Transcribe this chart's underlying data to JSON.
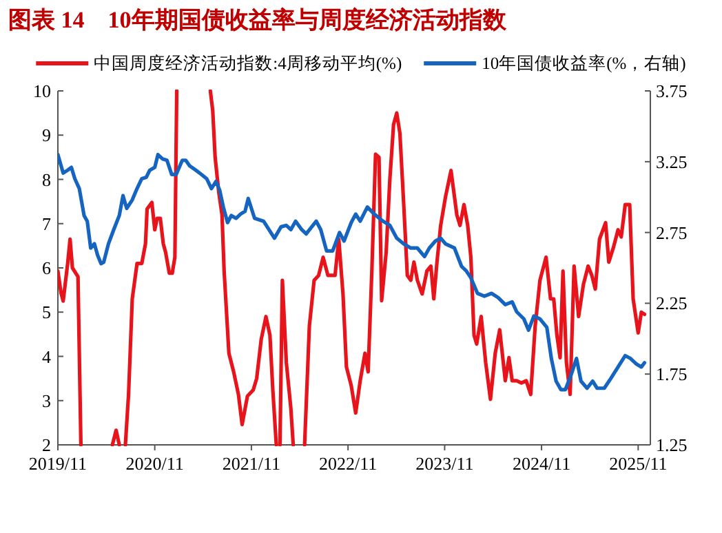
{
  "chart_data": {
    "type": "line",
    "title": "图表 14　10年期国债收益率与周度经济活动指数",
    "legend": "top",
    "marker": "none",
    "line_style": "solid",
    "grid": false,
    "xlim": [
      "2019-11-01",
      "2025-12-17"
    ],
    "xticks": [
      {
        "value": "2019-11-01",
        "label": "2019/11"
      },
      {
        "value": "2020-11-01",
        "label": "2020/11"
      },
      {
        "value": "2021-11-01",
        "label": "2021/11"
      },
      {
        "value": "2022-11-01",
        "label": "2022/11"
      },
      {
        "value": "2023-11-01",
        "label": "2023/11"
      },
      {
        "value": "2024-11-01",
        "label": "2024/11"
      },
      {
        "value": "2025-11-01",
        "label": "2025/11"
      }
    ],
    "ylim": [
      2,
      10
    ],
    "yticks": [
      2,
      3,
      4,
      5,
      6,
      7,
      8,
      9,
      10
    ],
    "y2lim": [
      1.25,
      3.75
    ],
    "y2ticks": [
      1.25,
      1.75,
      2.25,
      2.75,
      3.25,
      3.75
    ],
    "series": [
      {
        "name": "中国周度经济活动指数:4周移动平均(%)",
        "color": "#e8141c",
        "x": [
          "2019-11-01",
          "2019-11-13",
          "2019-11-21",
          "2019-12-08",
          "2019-12-17",
          "2019-12-26",
          "2020-01-16",
          "2020-01-27",
          "2020-04-01",
          "2020-05-25",
          "2020-06-08",
          "2020-06-20",
          "2020-07-01",
          "2020-07-13",
          "2020-07-25",
          "2020-08-08",
          "2020-08-26",
          "2020-09-13",
          "2020-09-27",
          "2020-10-03",
          "2020-10-21",
          "2020-11-01",
          "2020-11-10",
          "2020-11-22",
          "2020-12-03",
          "2020-12-12",
          "2020-12-26",
          "2021-01-06",
          "2021-01-16",
          "2021-01-23",
          "2021-03-15",
          "2021-05-30",
          "2021-06-08",
          "2021-06-17",
          "2021-07-01",
          "2021-07-13",
          "2021-07-21",
          "2021-08-08",
          "2021-08-26",
          "2021-09-13",
          "2021-09-27",
          "2021-10-17",
          "2021-11-08",
          "2021-11-21",
          "2021-12-08",
          "2021-12-26",
          "2022-01-10",
          "2022-01-21",
          "2022-02-03",
          "2022-02-10",
          "2022-02-17",
          "2022-02-26",
          "2022-03-13",
          "2022-03-30",
          "2022-04-08",
          "2022-05-01",
          "2022-05-21",
          "2022-06-08",
          "2022-06-26",
          "2022-07-13",
          "2022-07-30",
          "2022-08-17",
          "2022-09-13",
          "2022-09-27",
          "2022-10-13",
          "2022-10-26",
          "2022-11-13",
          "2022-11-30",
          "2022-12-17",
          "2023-01-04",
          "2023-01-16",
          "2023-01-30",
          "2023-02-13",
          "2023-02-26",
          "2023-03-08",
          "2023-03-25",
          "2023-04-08",
          "2023-04-22",
          "2023-05-04",
          "2023-05-16",
          "2023-05-30",
          "2023-06-13",
          "2023-06-26",
          "2023-07-08",
          "2023-07-21",
          "2023-08-08",
          "2023-08-26",
          "2023-09-10",
          "2023-09-21",
          "2023-10-03",
          "2023-10-17",
          "2023-11-04",
          "2023-11-25",
          "2023-12-17",
          "2023-12-29",
          "2024-01-13",
          "2024-01-27",
          "2024-02-08",
          "2024-02-20",
          "2024-03-01",
          "2024-03-18",
          "2024-04-04",
          "2024-04-22",
          "2024-05-10",
          "2024-05-27",
          "2024-06-17",
          "2024-07-01",
          "2024-07-13",
          "2024-07-30",
          "2024-08-17",
          "2024-09-04",
          "2024-09-21",
          "2024-10-08",
          "2024-10-26",
          "2024-11-18",
          "2024-12-05",
          "2024-12-17",
          "2024-12-29",
          "2025-01-10",
          "2025-01-21",
          "2025-02-03",
          "2025-02-17",
          "2025-03-04",
          "2025-03-21",
          "2025-04-08",
          "2025-04-26",
          "2025-05-10",
          "2025-05-23",
          "2025-06-08",
          "2025-07-01",
          "2025-07-13",
          "2025-07-30",
          "2025-08-17",
          "2025-08-29",
          "2025-09-13",
          "2025-09-30",
          "2025-10-13",
          "2025-11-01",
          "2025-11-13",
          "2025-11-25"
        ],
        "values": [
          5.93,
          5.43,
          5.25,
          6.1,
          6.65,
          6.0,
          5.8,
          2.0,
          null,
          2.0,
          2.33,
          2.0,
          null,
          2.0,
          3.14,
          5.3,
          6.1,
          6.1,
          6.55,
          7.33,
          7.48,
          6.86,
          7.12,
          7.12,
          6.55,
          6.35,
          5.88,
          5.88,
          6.24,
          10,
          null,
          10,
          9.55,
          8.5,
          7.7,
          7.2,
          5.93,
          4.07,
          3.65,
          3.14,
          2.46,
          3.1,
          3.24,
          3.5,
          4.38,
          4.9,
          4.48,
          3.24,
          2.0,
          null,
          2.0,
          5.72,
          3.86,
          2.83,
          2.0,
          null,
          2.0,
          4.69,
          5.72,
          5.83,
          6.24,
          5.83,
          5.83,
          6.65,
          5.41,
          3.76,
          3.34,
          2.72,
          3.45,
          4.07,
          3.65,
          5.93,
          8.57,
          8.5,
          5.26,
          6.35,
          8.0,
          9.24,
          9.5,
          9.04,
          7.48,
          5.83,
          5.72,
          6.13,
          5.72,
          5.41,
          5.93,
          6.04,
          5.3,
          6.13,
          6.96,
          7.6,
          8.2,
          7.2,
          6.96,
          7.43,
          6.96,
          6.24,
          4.48,
          4.28,
          4.9,
          3.86,
          3.03,
          4.07,
          4.6,
          3.45,
          3.97,
          3.45,
          3.45,
          3.4,
          3.45,
          3.14,
          4.69,
          5.72,
          6.24,
          5.3,
          5.3,
          4.48,
          3.97,
          5.93,
          3.86,
          3.14,
          6.04,
          4.9,
          5.62,
          6.04,
          5.83,
          5.52,
          6.65,
          7.02,
          6.13,
          6.45,
          6.86,
          6.7,
          7.43,
          7.43,
          5.3,
          4.53,
          5.0,
          4.95
        ]
      },
      {
        "name": "10年国债收益率(%，右轴)",
        "color": "#1565c0",
        "axis": "y2",
        "x": [
          "2019-11-01",
          "2019-11-21",
          "2019-12-08",
          "2019-12-22",
          "2020-01-04",
          "2020-01-21",
          "2020-02-08",
          "2020-02-20",
          "2020-03-04",
          "2020-03-18",
          "2020-03-30",
          "2020-04-12",
          "2020-04-22",
          "2020-05-10",
          "2020-05-30",
          "2020-06-20",
          "2020-07-04",
          "2020-07-18",
          "2020-08-08",
          "2020-08-26",
          "2020-09-13",
          "2020-09-30",
          "2020-10-13",
          "2020-11-01",
          "2020-11-13",
          "2020-11-30",
          "2020-12-17",
          "2021-01-04",
          "2021-01-21",
          "2021-02-13",
          "2021-02-26",
          "2021-03-13",
          "2021-04-05",
          "2021-04-26",
          "2021-05-16",
          "2021-06-03",
          "2021-06-20",
          "2021-07-04",
          "2021-07-18",
          "2021-08-03",
          "2021-08-17",
          "2021-09-04",
          "2021-09-21",
          "2021-10-08",
          "2021-10-20",
          "2021-11-13",
          "2021-12-17",
          "2022-01-27",
          "2022-02-21",
          "2022-03-13",
          "2022-03-30",
          "2022-04-17",
          "2022-05-10",
          "2022-05-27",
          "2022-07-04",
          "2022-07-21",
          "2022-08-12",
          "2022-09-04",
          "2022-09-30",
          "2022-10-17",
          "2022-11-13",
          "2022-11-30",
          "2022-12-17",
          "2023-01-13",
          "2023-02-08",
          "2023-03-13",
          "2023-04-08",
          "2023-05-04",
          "2023-05-30",
          "2023-06-26",
          "2023-07-21",
          "2023-08-17",
          "2023-09-04",
          "2023-09-27",
          "2023-10-17",
          "2023-11-04",
          "2023-12-08",
          "2024-01-04",
          "2024-01-21",
          "2024-02-08",
          "2024-03-04",
          "2024-03-30",
          "2024-04-26",
          "2024-05-21",
          "2024-06-17",
          "2024-07-13",
          "2024-07-30",
          "2024-08-26",
          "2024-09-13",
          "2024-10-03",
          "2024-10-26",
          "2024-11-21",
          "2024-12-08",
          "2024-12-26",
          "2025-01-13",
          "2025-01-30",
          "2025-02-20",
          "2025-03-13",
          "2025-03-30",
          "2025-04-22",
          "2025-05-13",
          "2025-05-30",
          "2025-06-26",
          "2025-07-21",
          "2025-08-17",
          "2025-09-13",
          "2025-10-03",
          "2025-10-26",
          "2025-11-13",
          "2025-11-25"
        ],
        "values": [
          3.3,
          3.17,
          3.19,
          3.21,
          3.13,
          3.06,
          2.87,
          2.83,
          2.64,
          2.67,
          2.59,
          2.53,
          2.54,
          2.67,
          2.77,
          2.87,
          3.01,
          2.92,
          2.98,
          3.06,
          3.13,
          3.14,
          3.19,
          3.21,
          3.3,
          3.27,
          3.26,
          3.16,
          3.16,
          3.26,
          3.26,
          3.22,
          3.19,
          3.16,
          3.13,
          3.06,
          3.11,
          3.05,
          2.93,
          2.82,
          2.87,
          2.85,
          2.88,
          2.9,
          2.99,
          2.85,
          2.83,
          2.71,
          2.79,
          2.8,
          2.77,
          2.83,
          2.77,
          2.74,
          2.83,
          2.77,
          2.62,
          2.62,
          2.75,
          2.69,
          2.82,
          2.88,
          2.83,
          2.93,
          2.88,
          2.83,
          2.8,
          2.71,
          2.67,
          2.64,
          2.64,
          2.58,
          2.64,
          2.69,
          2.71,
          2.67,
          2.64,
          2.51,
          2.48,
          2.43,
          2.32,
          2.3,
          2.32,
          2.29,
          2.24,
          2.26,
          2.19,
          2.14,
          2.06,
          2.16,
          2.14,
          2.08,
          1.86,
          1.7,
          1.64,
          1.64,
          1.74,
          1.86,
          1.7,
          1.65,
          1.7,
          1.65,
          1.65,
          1.72,
          1.8,
          1.88,
          1.86,
          1.82,
          1.8,
          1.83
        ]
      }
    ]
  }
}
